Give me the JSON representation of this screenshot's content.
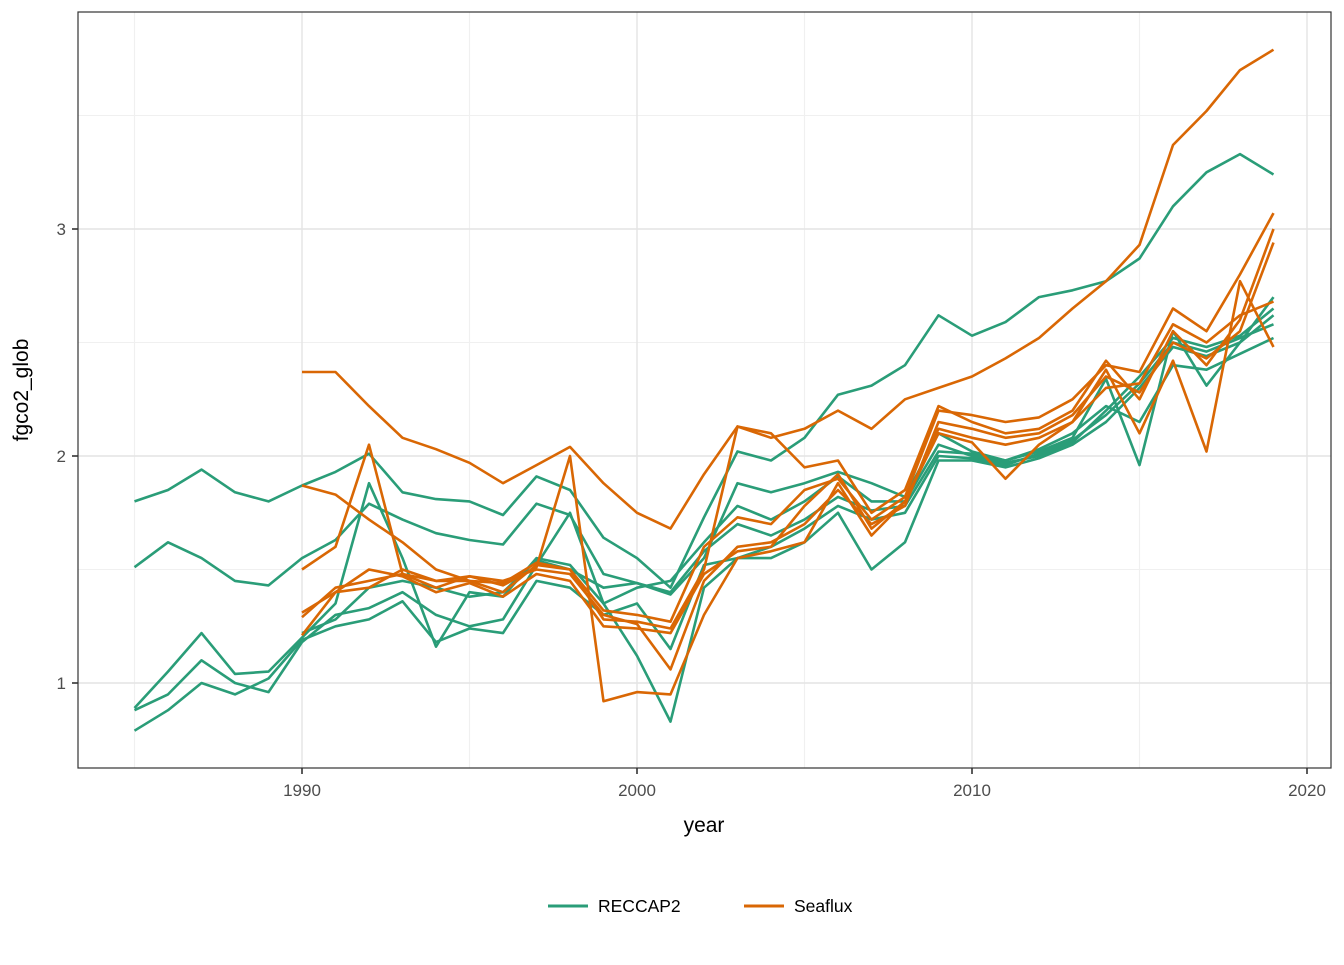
{
  "figure": {
    "x_axis_title": "year",
    "y_axis_title": "fgco2_glob"
  },
  "legend": {
    "items": [
      {
        "label": "RECCAP2",
        "color": "#2a9d78"
      },
      {
        "label": "Seaflux",
        "color": "#d96704"
      }
    ]
  },
  "style": {
    "panel_border": "#333333",
    "grid_major": "#e4e4e4",
    "grid_minor": "#f0f0f0",
    "tick_color": "#333333",
    "tick_text": "#4d4d4d",
    "line_width": 2.6
  },
  "chart_data": {
    "type": "line",
    "title": "",
    "xlabel": "year",
    "ylabel": "fgco2_glob",
    "xlim": [
      1983.3,
      2020.9
    ],
    "ylim": [
      0.63,
      3.96
    ],
    "x_major_ticks": [
      1990,
      2000,
      2010,
      2020
    ],
    "x_tick_labels": [
      "1990",
      "2000",
      "2010",
      "2020"
    ],
    "x_minor_gridlines": [
      1985,
      1995,
      2005,
      2015
    ],
    "y_major_ticks": [
      1,
      2,
      3
    ],
    "y_tick_labels": [
      "1",
      "2",
      "3"
    ],
    "y_minor_gridlines": [
      1.5,
      2.5,
      3.5
    ],
    "grid": true,
    "legend_position": "bottom",
    "groups": [
      {
        "name": "RECCAP2",
        "color": "#2a9d78"
      },
      {
        "name": "Seaflux",
        "color": "#d96704"
      }
    ],
    "series": [
      {
        "name": "RECCAP2-model-1",
        "group": "RECCAP2",
        "start_year": 1985,
        "values": [
          1.8,
          1.85,
          1.94,
          1.84,
          1.8,
          1.87,
          1.93,
          2.01,
          1.84,
          1.81,
          1.8,
          1.74,
          1.91,
          1.85,
          1.64,
          1.55,
          1.42,
          1.73,
          2.02,
          1.98,
          2.08,
          2.27,
          2.31,
          2.4,
          2.62,
          2.53,
          2.59,
          2.7,
          2.73,
          2.77,
          2.87,
          3.1,
          3.25,
          3.33,
          3.24
        ]
      },
      {
        "name": "RECCAP2-model-2",
        "group": "RECCAP2",
        "start_year": 1985,
        "values": [
          1.51,
          1.62,
          1.55,
          1.45,
          1.43,
          1.55,
          1.63,
          1.79,
          1.72,
          1.66,
          1.63,
          1.61,
          1.79,
          1.74,
          1.48,
          1.44,
          1.39,
          1.55,
          1.88,
          1.84,
          1.88,
          1.93,
          1.88,
          1.82,
          2.1,
          2.02,
          1.98,
          2.02,
          2.08,
          2.34,
          1.96,
          2.55,
          2.31,
          2.5,
          2.7
        ]
      },
      {
        "name": "RECCAP2-model-3",
        "group": "RECCAP2",
        "start_year": 1985,
        "values": [
          0.89,
          1.05,
          1.22,
          1.04,
          1.05,
          1.2,
          1.35,
          1.88,
          1.55,
          1.16,
          1.4,
          1.38,
          1.55,
          1.52,
          1.35,
          1.42,
          1.45,
          1.62,
          1.78,
          1.72,
          1.8,
          1.91,
          1.8,
          1.8,
          2.05,
          2.0,
          1.97,
          2.0,
          2.06,
          2.2,
          2.35,
          2.52,
          2.48,
          2.53,
          2.65
        ]
      },
      {
        "name": "RECCAP2-model-4",
        "group": "RECCAP2",
        "start_year": 1985,
        "values": [
          0.88,
          0.95,
          1.1,
          1.0,
          0.96,
          1.18,
          1.3,
          1.33,
          1.4,
          1.3,
          1.25,
          1.28,
          1.52,
          1.75,
          1.35,
          1.12,
          0.83,
          1.42,
          1.55,
          1.55,
          1.62,
          1.75,
          1.5,
          1.62,
          1.98,
          1.98,
          1.95,
          1.99,
          2.05,
          2.15,
          2.3,
          2.48,
          2.44,
          2.5,
          2.62
        ]
      },
      {
        "name": "RECCAP2-model-5",
        "group": "RECCAP2",
        "start_year": 1985,
        "values": [
          0.79,
          0.88,
          1.0,
          0.95,
          1.02,
          1.19,
          1.25,
          1.28,
          1.36,
          1.18,
          1.24,
          1.22,
          1.45,
          1.42,
          1.3,
          1.35,
          1.15,
          1.52,
          1.55,
          1.6,
          1.68,
          1.78,
          1.72,
          1.75,
          2.0,
          1.99,
          1.96,
          2.01,
          2.07,
          2.18,
          2.32,
          2.5,
          2.46,
          2.52,
          2.58
        ]
      },
      {
        "name": "RECCAP2-model-6",
        "group": "RECCAP2",
        "start_year": 1990,
        "values": [
          1.22,
          1.28,
          1.42,
          1.45,
          1.42,
          1.38,
          1.4,
          1.54,
          1.5,
          1.42,
          1.44,
          1.4,
          1.58,
          1.7,
          1.65,
          1.72,
          1.82,
          1.76,
          1.78,
          2.02,
          2.01,
          1.98,
          2.03,
          2.1,
          2.22,
          2.15,
          2.4,
          2.38,
          2.45,
          2.52
        ]
      },
      {
        "name": "Seaflux-product-1",
        "group": "Seaflux",
        "start_year": 1990,
        "values": [
          2.37,
          2.37,
          2.22,
          2.08,
          2.03,
          1.97,
          1.88,
          1.96,
          2.04,
          1.88,
          1.75,
          1.68,
          1.92,
          2.13,
          2.08,
          2.12,
          2.2,
          2.12,
          2.25,
          2.3,
          2.35,
          2.43,
          2.52,
          2.65,
          2.77,
          2.93,
          3.37,
          3.52,
          3.7,
          3.79
        ]
      },
      {
        "name": "Seaflux-product-2",
        "group": "Seaflux",
        "start_year": 1990,
        "values": [
          1.87,
          1.83,
          1.72,
          1.62,
          1.5,
          1.45,
          1.44,
          1.53,
          1.5,
          1.32,
          1.3,
          1.27,
          1.6,
          1.73,
          1.7,
          1.85,
          1.9,
          1.72,
          1.82,
          2.2,
          2.18,
          2.15,
          2.17,
          2.25,
          2.4,
          2.37,
          2.65,
          2.55,
          2.8,
          3.07
        ]
      },
      {
        "name": "Seaflux-product-3",
        "group": "Seaflux",
        "start_year": 1990,
        "values": [
          1.5,
          1.6,
          2.05,
          1.48,
          1.45,
          1.47,
          1.43,
          1.51,
          2.0,
          0.92,
          0.96,
          0.95,
          1.3,
          1.55,
          1.58,
          1.62,
          1.88,
          1.65,
          1.8,
          2.1,
          2.06,
          1.9,
          2.05,
          2.15,
          2.38,
          2.1,
          2.42,
          2.02,
          2.77,
          2.48
        ]
      },
      {
        "name": "Seaflux-product-4",
        "group": "Seaflux",
        "start_year": 1990,
        "values": [
          1.31,
          1.4,
          1.42,
          1.5,
          1.45,
          1.45,
          1.4,
          1.52,
          1.5,
          1.28,
          1.27,
          1.24,
          1.5,
          2.13,
          2.1,
          1.95,
          1.98,
          1.75,
          1.85,
          2.22,
          2.15,
          2.1,
          2.12,
          2.2,
          2.42,
          2.25,
          2.55,
          2.4,
          2.6,
          3.0
        ]
      },
      {
        "name": "Seaflux-product-5",
        "group": "Seaflux",
        "start_year": 1990,
        "values": [
          1.29,
          1.42,
          1.45,
          1.48,
          1.42,
          1.47,
          1.45,
          1.5,
          1.48,
          1.3,
          1.26,
          1.06,
          1.45,
          1.6,
          1.62,
          1.7,
          1.85,
          1.7,
          1.78,
          2.15,
          2.12,
          2.08,
          2.1,
          2.18,
          2.35,
          2.28,
          2.5,
          2.43,
          2.55,
          2.94
        ]
      },
      {
        "name": "Seaflux-product-6",
        "group": "Seaflux",
        "start_year": 1990,
        "values": [
          1.21,
          1.4,
          1.5,
          1.47,
          1.4,
          1.44,
          1.38,
          1.48,
          1.45,
          1.25,
          1.24,
          1.22,
          1.48,
          1.58,
          1.6,
          1.78,
          1.92,
          1.68,
          1.8,
          2.12,
          2.08,
          2.05,
          2.08,
          2.15,
          2.3,
          2.32,
          2.58,
          2.5,
          2.62,
          2.68
        ]
      }
    ]
  }
}
